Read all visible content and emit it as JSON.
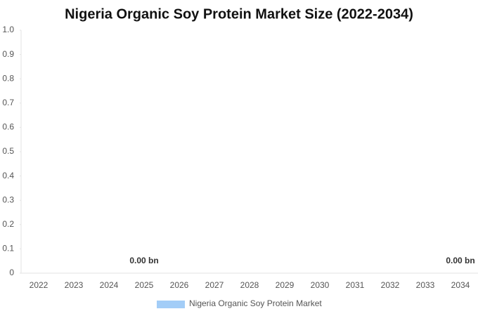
{
  "chart_data": {
    "type": "bar",
    "title": "Nigeria Organic Soy Protein Market Size (2022-2034)",
    "categories": [
      "2022",
      "2023",
      "2024",
      "2025",
      "2026",
      "2027",
      "2028",
      "2029",
      "2030",
      "2031",
      "2032",
      "2033",
      "2034"
    ],
    "series": [
      {
        "name": "Nigeria Organic Soy Protein Market",
        "color": "#a3cdf7",
        "values": [
          0,
          0,
          0,
          0,
          0,
          0,
          0,
          0,
          0,
          0,
          0,
          0,
          0
        ],
        "value_labels": [
          null,
          null,
          null,
          "0.00 bn",
          null,
          null,
          null,
          null,
          null,
          null,
          null,
          null,
          "0.00 bn"
        ]
      }
    ],
    "ylim": [
      0,
      1
    ],
    "yticks": [
      0,
      0.1,
      0.2,
      0.3,
      0.4,
      0.5,
      0.6,
      0.7,
      0.8,
      0.9,
      {
        "value": 1,
        "label": "1.0"
      }
    ],
    "grid": false,
    "legend": "bottom"
  }
}
